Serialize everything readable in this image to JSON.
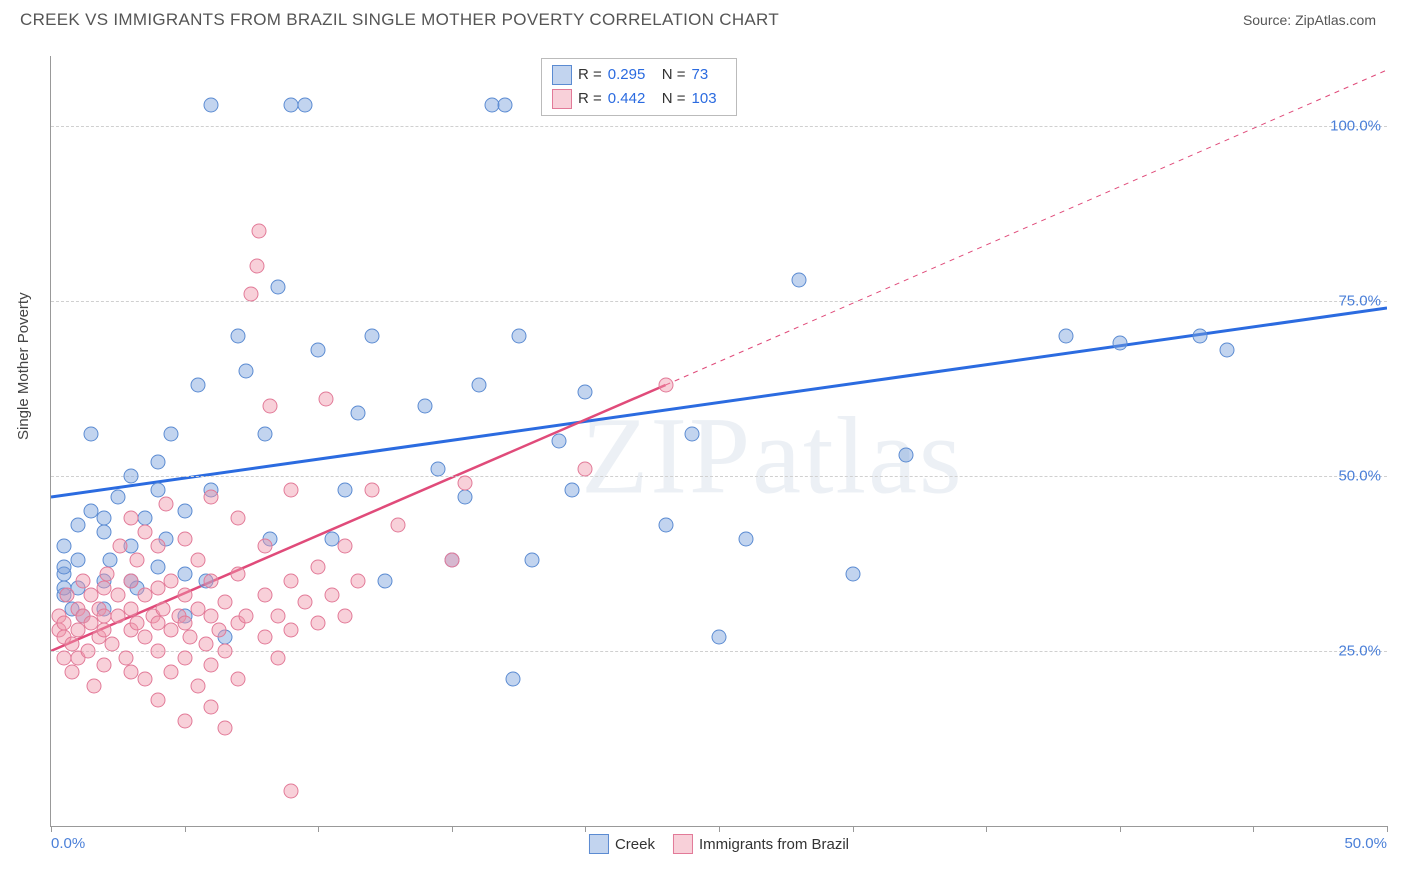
{
  "header": {
    "title": "CREEK VS IMMIGRANTS FROM BRAZIL SINGLE MOTHER POVERTY CORRELATION CHART",
    "source": "Source: ZipAtlas.com"
  },
  "chart": {
    "type": "scatter",
    "ylabel": "Single Mother Poverty",
    "watermark": "ZIPatlas",
    "background_color": "#ffffff",
    "grid_color": "#d0d0d0",
    "axis_color": "#999999",
    "tick_label_color": "#4a7fd8",
    "xlim": [
      0,
      50
    ],
    "ylim": [
      0,
      110
    ],
    "yticks": [
      25,
      50,
      75,
      100
    ],
    "ytick_labels": [
      "25.0%",
      "50.0%",
      "75.0%",
      "100.0%"
    ],
    "xticks": [
      0,
      5,
      10,
      15,
      20,
      25,
      30,
      35,
      40,
      45,
      50
    ],
    "xtick_labels_shown": {
      "0": "0.0%",
      "50": "50.0%"
    },
    "marker_radius": 7.5,
    "series": [
      {
        "id": "creek",
        "label": "Creek",
        "fill": "rgba(120,160,220,0.45)",
        "stroke": "#5b8bd2",
        "R": "0.295",
        "N": "73",
        "trend": {
          "x1": 0,
          "y1": 47,
          "x2": 50,
          "y2": 74,
          "color": "#2b6be0",
          "width": 3,
          "dash": "none",
          "extrap": null
        },
        "points": [
          [
            0.5,
            33
          ],
          [
            0.5,
            34
          ],
          [
            0.5,
            36
          ],
          [
            0.5,
            37
          ],
          [
            0.5,
            40
          ],
          [
            0.8,
            31
          ],
          [
            1,
            34
          ],
          [
            1,
            38
          ],
          [
            1,
            43
          ],
          [
            1.2,
            30
          ],
          [
            1.5,
            45
          ],
          [
            1.5,
            56
          ],
          [
            2,
            31
          ],
          [
            2,
            35
          ],
          [
            2,
            42
          ],
          [
            2,
            44
          ],
          [
            2.2,
            38
          ],
          [
            2.5,
            47
          ],
          [
            3,
            35
          ],
          [
            3,
            40
          ],
          [
            3,
            50
          ],
          [
            3.2,
            34
          ],
          [
            3.5,
            44
          ],
          [
            4,
            37
          ],
          [
            4,
            48
          ],
          [
            4,
            52
          ],
          [
            4.3,
            41
          ],
          [
            4.5,
            56
          ],
          [
            5,
            30
          ],
          [
            5,
            36
          ],
          [
            5,
            45
          ],
          [
            5.5,
            63
          ],
          [
            5.8,
            35
          ],
          [
            6,
            48
          ],
          [
            6,
            103
          ],
          [
            6.5,
            27
          ],
          [
            7,
            70
          ],
          [
            7.3,
            65
          ],
          [
            8,
            56
          ],
          [
            8.5,
            77
          ],
          [
            9,
            103
          ],
          [
            9.5,
            103
          ],
          [
            10,
            68
          ],
          [
            10.5,
            41
          ],
          [
            11,
            48
          ],
          [
            11.5,
            59
          ],
          [
            12,
            70
          ],
          [
            14,
            60
          ],
          [
            14.5,
            51
          ],
          [
            15,
            38
          ],
          [
            15.5,
            47
          ],
          [
            16,
            63
          ],
          [
            16.5,
            103
          ],
          [
            17,
            103
          ],
          [
            17.3,
            21
          ],
          [
            17.5,
            70
          ],
          [
            18,
            38
          ],
          [
            19,
            55
          ],
          [
            19.5,
            48
          ],
          [
            20,
            62
          ],
          [
            23,
            43
          ],
          [
            24,
            56
          ],
          [
            25,
            27
          ],
          [
            26,
            41
          ],
          [
            28,
            78
          ],
          [
            30,
            36
          ],
          [
            32,
            53
          ],
          [
            38,
            70
          ],
          [
            40,
            69
          ],
          [
            43,
            70
          ],
          [
            44,
            68
          ],
          [
            8.2,
            41
          ],
          [
            12.5,
            35
          ]
        ]
      },
      {
        "id": "brazil",
        "label": "Immigrants from Brazil",
        "fill": "rgba(240,150,170,0.45)",
        "stroke": "#e27a98",
        "R": "0.442",
        "N": "103",
        "trend": {
          "x1": 0,
          "y1": 25,
          "x2": 23,
          "y2": 63,
          "color": "#e04b7a",
          "width": 2.5,
          "dash": "none",
          "extrap": {
            "x1": 23,
            "y1": 63,
            "x2": 50,
            "y2": 108,
            "dash": "5,5",
            "width": 1
          }
        },
        "points": [
          [
            0.3,
            28
          ],
          [
            0.3,
            30
          ],
          [
            0.5,
            24
          ],
          [
            0.5,
            27
          ],
          [
            0.5,
            29
          ],
          [
            0.6,
            33
          ],
          [
            0.8,
            22
          ],
          [
            0.8,
            26
          ],
          [
            1,
            24
          ],
          [
            1,
            28
          ],
          [
            1,
            31
          ],
          [
            1.2,
            30
          ],
          [
            1.2,
            35
          ],
          [
            1.4,
            25
          ],
          [
            1.5,
            29
          ],
          [
            1.5,
            33
          ],
          [
            1.6,
            20
          ],
          [
            1.8,
            27
          ],
          [
            1.8,
            31
          ],
          [
            2,
            23
          ],
          [
            2,
            28
          ],
          [
            2,
            30
          ],
          [
            2,
            34
          ],
          [
            2.1,
            36
          ],
          [
            2.3,
            26
          ],
          [
            2.5,
            30
          ],
          [
            2.5,
            33
          ],
          [
            2.6,
            40
          ],
          [
            2.8,
            24
          ],
          [
            3,
            22
          ],
          [
            3,
            28
          ],
          [
            3,
            31
          ],
          [
            3,
            35
          ],
          [
            3,
            44
          ],
          [
            3.2,
            29
          ],
          [
            3.2,
            38
          ],
          [
            3.5,
            21
          ],
          [
            3.5,
            27
          ],
          [
            3.5,
            33
          ],
          [
            3.5,
            42
          ],
          [
            3.8,
            30
          ],
          [
            4,
            18
          ],
          [
            4,
            25
          ],
          [
            4,
            29
          ],
          [
            4,
            34
          ],
          [
            4,
            40
          ],
          [
            4.2,
            31
          ],
          [
            4.3,
            46
          ],
          [
            4.5,
            22
          ],
          [
            4.5,
            28
          ],
          [
            4.5,
            35
          ],
          [
            4.8,
            30
          ],
          [
            5,
            15
          ],
          [
            5,
            24
          ],
          [
            5,
            29
          ],
          [
            5,
            33
          ],
          [
            5,
            41
          ],
          [
            5.2,
            27
          ],
          [
            5.5,
            20
          ],
          [
            5.5,
            31
          ],
          [
            5.5,
            38
          ],
          [
            5.8,
            26
          ],
          [
            6,
            17
          ],
          [
            6,
            23
          ],
          [
            6,
            30
          ],
          [
            6,
            35
          ],
          [
            6,
            47
          ],
          [
            6.3,
            28
          ],
          [
            6.5,
            14
          ],
          [
            6.5,
            25
          ],
          [
            6.5,
            32
          ],
          [
            7,
            21
          ],
          [
            7,
            29
          ],
          [
            7,
            36
          ],
          [
            7,
            44
          ],
          [
            7.3,
            30
          ],
          [
            7.5,
            76
          ],
          [
            7.7,
            80
          ],
          [
            7.8,
            85
          ],
          [
            8,
            27
          ],
          [
            8,
            33
          ],
          [
            8,
            40
          ],
          [
            8.2,
            60
          ],
          [
            8.5,
            24
          ],
          [
            8.5,
            30
          ],
          [
            9,
            5
          ],
          [
            9,
            28
          ],
          [
            9,
            35
          ],
          [
            9,
            48
          ],
          [
            9.5,
            32
          ],
          [
            10,
            29
          ],
          [
            10,
            37
          ],
          [
            10.3,
            61
          ],
          [
            10.5,
            33
          ],
          [
            11,
            30
          ],
          [
            11,
            40
          ],
          [
            11.5,
            35
          ],
          [
            12,
            48
          ],
          [
            13,
            43
          ],
          [
            15,
            38
          ],
          [
            15.5,
            49
          ],
          [
            20,
            51
          ],
          [
            23,
            63
          ]
        ]
      }
    ],
    "legend": {
      "items": [
        "Creek",
        "Immigrants from Brazil"
      ]
    },
    "stats_labels": {
      "r": "R =",
      "n": "N ="
    }
  }
}
